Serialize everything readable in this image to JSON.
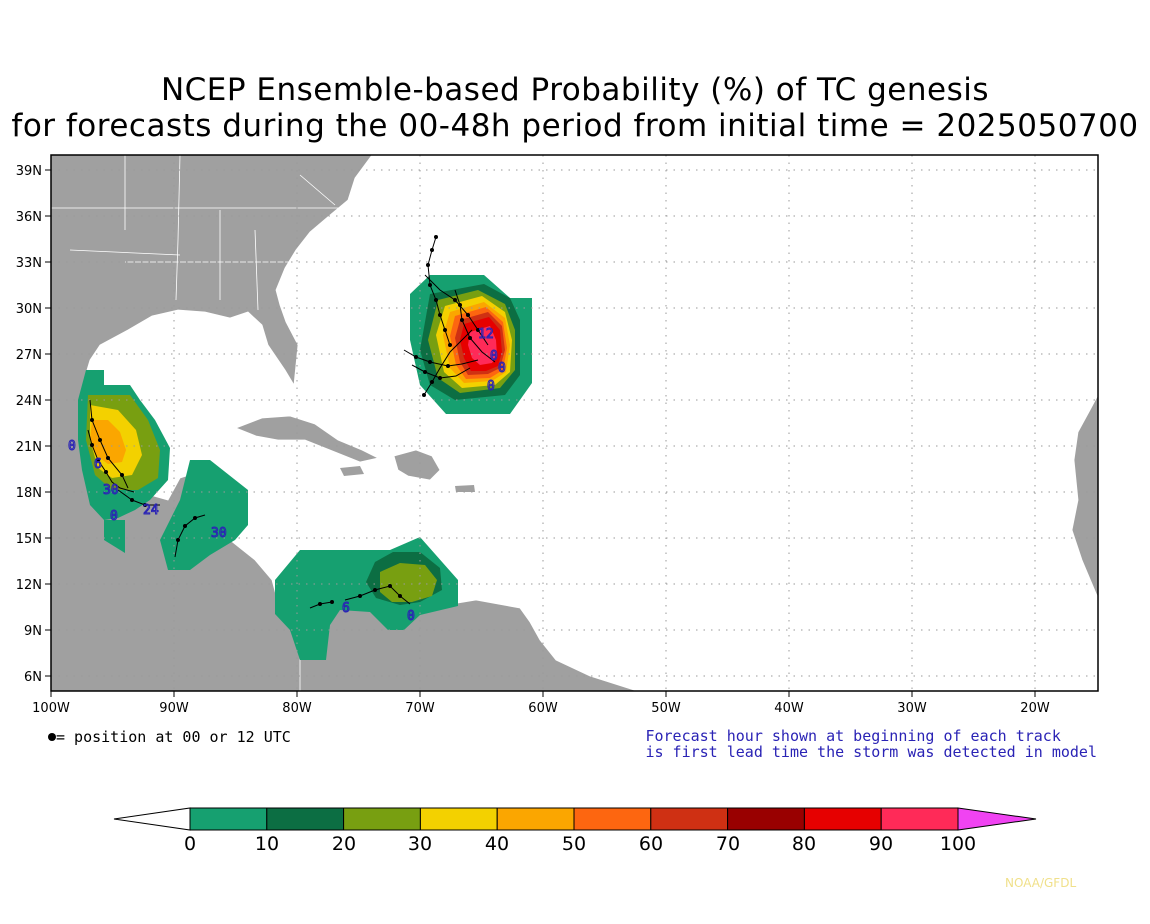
{
  "title": {
    "line1": "NCEP Ensemble-based Probability (%) of TC genesis",
    "line2": "for forecasts during the 00-48h period from initial time = 2025050700"
  },
  "map": {
    "lat_labels": [
      "39N",
      "36N",
      "33N",
      "30N",
      "27N",
      "24N",
      "21N",
      "18N",
      "15N",
      "12N",
      "9N",
      "6N"
    ],
    "lon_labels": [
      "100W",
      "90W",
      "80W",
      "70W",
      "60W",
      "50W",
      "40W",
      "30W",
      "20W"
    ],
    "extent": {
      "lon": [
        -100,
        -15
      ],
      "lat": [
        5,
        40
      ]
    },
    "land_color": "#a0a0a0",
    "ocean_color": "#ffffff",
    "grid": "dotted"
  },
  "legend": {
    "marker_text": "= position at 00 or 12 UTC",
    "note_line1": "Forecast hour shown at beginning of each track",
    "note_line2": "is first lead time the storm was detected in model",
    "note_color": "#2a23b5"
  },
  "colorbar": {
    "labels": [
      "0",
      "10",
      "20",
      "30",
      "40",
      "50",
      "60",
      "70",
      "80",
      "90",
      "100"
    ],
    "colors": [
      "#16a070",
      "#0c6e43",
      "#789f11",
      "#f3d100",
      "#fba600",
      "#fd6610",
      "#cf3013",
      "#990000",
      "#e60000",
      "#ff2a58",
      "#f043f2"
    ]
  },
  "credit": "NOAA/GFDL",
  "track_labels": [
    "0",
    "30",
    "0",
    "24",
    "30",
    "6",
    "0",
    "12",
    "0",
    "0",
    "0",
    "6"
  ]
}
